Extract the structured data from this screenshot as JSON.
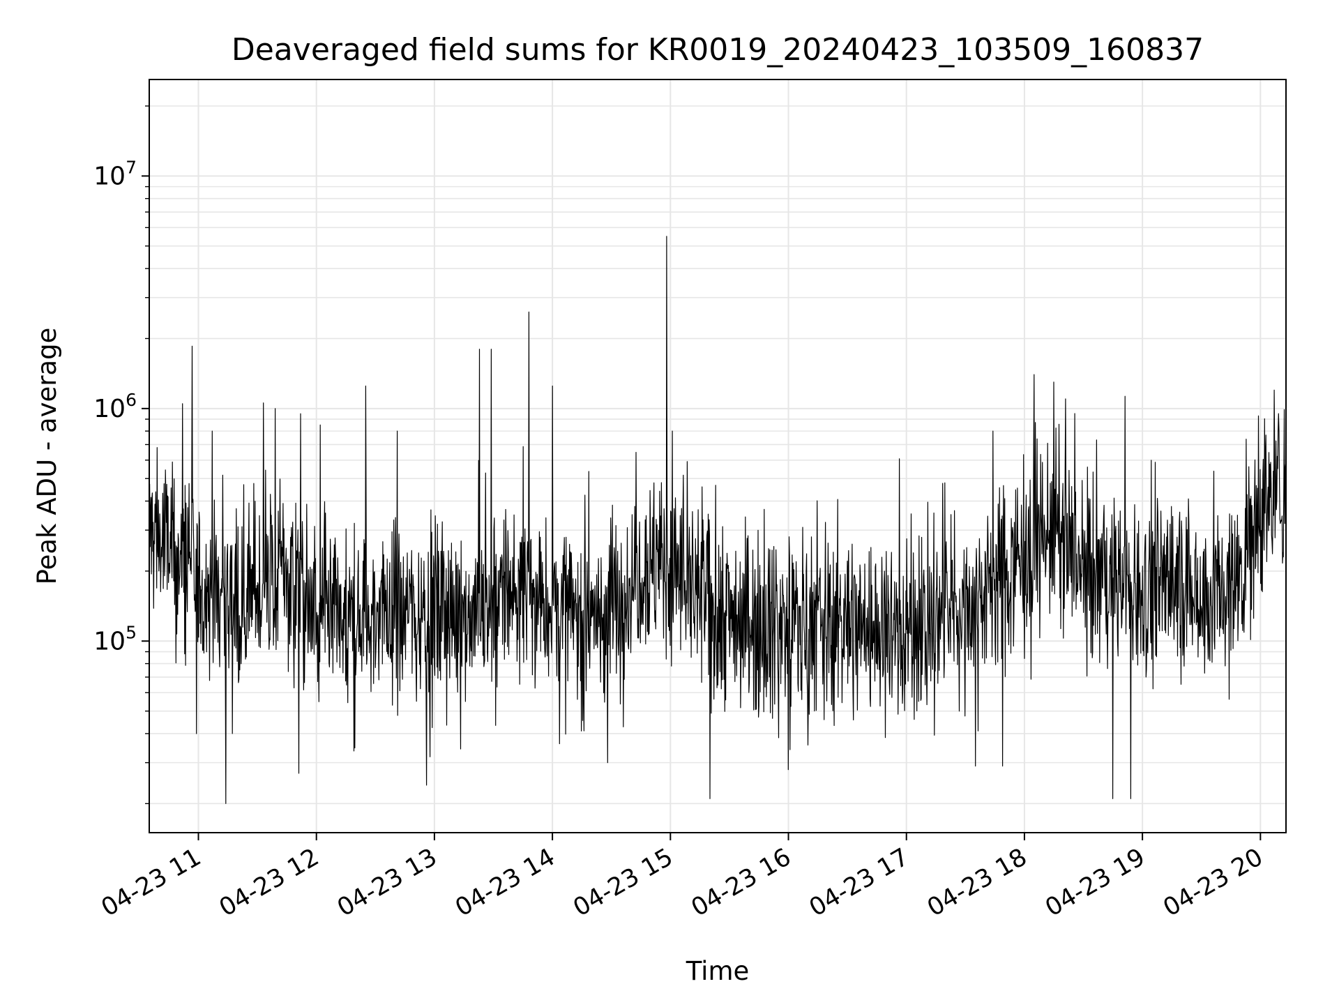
{
  "chart_data": {
    "type": "line",
    "title": "Deaveraged field sums for KR0019_20240423_103509_160837",
    "xlabel": "Time",
    "ylabel": "Peak ADU - average",
    "yscale": "log",
    "ylim": [
      15000,
      26000000
    ],
    "y_major_ticks": [
      {
        "value": 100000,
        "base": "10",
        "exp": "5"
      },
      {
        "value": 1000000,
        "base": "10",
        "exp": "6"
      },
      {
        "value": 10000000,
        "base": "10",
        "exp": "7"
      }
    ],
    "xlim": [
      "2024-04-23 10:35",
      "2024-04-23 20:13"
    ],
    "x_ticks": [
      {
        "value": "2024-04-23 11:00",
        "label": "04-23 11"
      },
      {
        "value": "2024-04-23 12:00",
        "label": "04-23 12"
      },
      {
        "value": "2024-04-23 13:00",
        "label": "04-23 13"
      },
      {
        "value": "2024-04-23 14:00",
        "label": "04-23 14"
      },
      {
        "value": "2024-04-23 15:00",
        "label": "04-23 15"
      },
      {
        "value": "2024-04-23 16:00",
        "label": "04-23 16"
      },
      {
        "value": "2024-04-23 17:00",
        "label": "04-23 17"
      },
      {
        "value": "2024-04-23 18:00",
        "label": "04-23 18"
      },
      {
        "value": "2024-04-23 19:00",
        "label": "04-23 19"
      },
      {
        "value": "2024-04-23 20:00",
        "label": "04-23 20"
      }
    ],
    "grid": true,
    "line_color": "#000000",
    "grid_color": "#e6e6e6",
    "series": [
      {
        "x": [
          "2024-04-23 10:35",
          "2024-04-23 10:45",
          "2024-04-23 11:00",
          "2024-04-23 11:15",
          "2024-04-23 11:30",
          "2024-04-23 11:45",
          "2024-04-23 12:00",
          "2024-04-23 12:15",
          "2024-04-23 12:30",
          "2024-04-23 12:45",
          "2024-04-23 13:00",
          "2024-04-23 13:15",
          "2024-04-23 13:30",
          "2024-04-23 13:45",
          "2024-04-23 14:00",
          "2024-04-23 14:15",
          "2024-04-23 14:30",
          "2024-04-23 14:45",
          "2024-04-23 15:00",
          "2024-04-23 15:15",
          "2024-04-23 15:30",
          "2024-04-23 15:45",
          "2024-04-23 16:00",
          "2024-04-23 16:15",
          "2024-04-23 16:30",
          "2024-04-23 16:45",
          "2024-04-23 17:00",
          "2024-04-23 17:15",
          "2024-04-23 17:30",
          "2024-04-23 17:45",
          "2024-04-23 18:00",
          "2024-04-23 18:15",
          "2024-04-23 18:30",
          "2024-04-23 18:45",
          "2024-04-23 19:00",
          "2024-04-23 19:15",
          "2024-04-23 19:30",
          "2024-04-23 19:45",
          "2024-04-23 20:00",
          "2024-04-23 20:13"
        ],
        "y": [
          300000,
          250000,
          170000,
          150000,
          160000,
          200000,
          120000,
          110000,
          130000,
          140000,
          130000,
          135000,
          150000,
          170000,
          140000,
          120000,
          140000,
          220000,
          210000,
          150000,
          130000,
          125000,
          120000,
          115000,
          120000,
          115000,
          110000,
          125000,
          145000,
          180000,
          250000,
          300000,
          200000,
          180000,
          170000,
          180000,
          160000,
          160000,
          380000,
          470000
        ]
      }
    ],
    "spikes": [
      {
        "x": "2024-04-23 14:58",
        "y": 5500000
      },
      {
        "x": "2024-04-23 13:48",
        "y": 2600000
      },
      {
        "x": "2024-04-23 13:23",
        "y": 1800000
      },
      {
        "x": "2024-04-23 13:29",
        "y": 1800000
      },
      {
        "x": "2024-04-23 18:05",
        "y": 1400000
      },
      {
        "x": "2024-04-23 14:00",
        "y": 1250000
      },
      {
        "x": "2024-04-23 12:25",
        "y": 1250000
      },
      {
        "x": "2024-04-23 20:07",
        "y": 1200000
      },
      {
        "x": "2024-04-23 10:52",
        "y": 1050000
      },
      {
        "x": "2024-04-23 11:39",
        "y": 1000000
      },
      {
        "x": "2024-04-23 11:52",
        "y": 950000
      },
      {
        "x": "2024-04-23 18:15",
        "y": 1300000
      },
      {
        "x": "2024-04-23 10:39",
        "y": 680000
      },
      {
        "x": "2024-04-23 11:07",
        "y": 800000
      },
      {
        "x": "2024-04-23 12:02",
        "y": 850000
      },
      {
        "x": "2024-04-23 12:41",
        "y": 800000
      },
      {
        "x": "2024-04-23 15:01",
        "y": 800000
      },
      {
        "x": "2024-04-23 17:44",
        "y": 800000
      },
      {
        "x": "2024-04-23 18:21",
        "y": 1100000
      },
      {
        "x": "2024-04-23 19:59",
        "y": 930000
      },
      {
        "x": "2024-04-23 10:59",
        "y": 40000
      },
      {
        "x": "2024-04-23 11:14",
        "y": 20000
      },
      {
        "x": "2024-04-23 11:51",
        "y": 27000
      },
      {
        "x": "2024-04-23 12:56",
        "y": 24000
      },
      {
        "x": "2024-04-23 14:28",
        "y": 30000
      },
      {
        "x": "2024-04-23 15:20",
        "y": 21000
      },
      {
        "x": "2024-04-23 16:00",
        "y": 28000
      },
      {
        "x": "2024-04-23 17:35",
        "y": 29000
      },
      {
        "x": "2024-04-23 18:45",
        "y": 21000
      },
      {
        "x": "2024-04-23 18:54",
        "y": 21000
      },
      {
        "x": "2024-04-23 17:49",
        "y": 29000
      }
    ]
  }
}
